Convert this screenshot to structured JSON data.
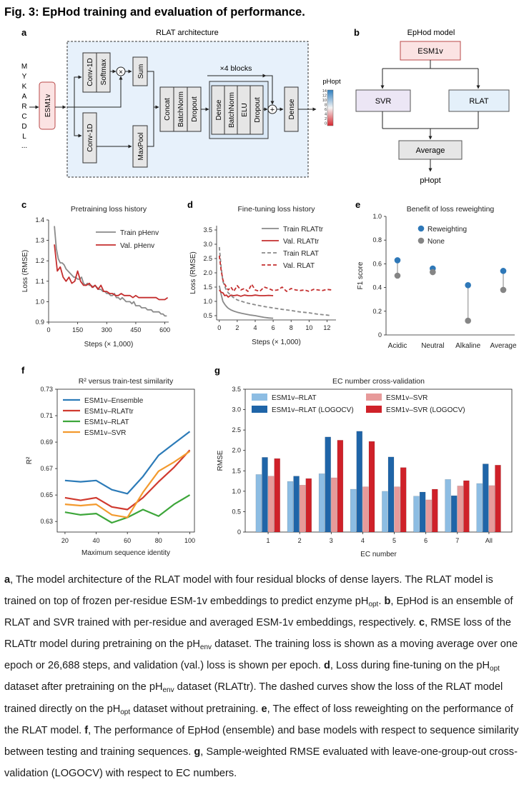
{
  "figure": {
    "title": "Fig. 3: EpHod training and evaluation of performance."
  },
  "panel_a": {
    "letter": "a",
    "title": "RLAT architecture",
    "sequence_letters": [
      "M",
      "Y",
      "K",
      "A",
      "R",
      "C",
      "D",
      "L",
      "..."
    ],
    "esm_label": "ESM1v",
    "blocks_label": "×4 blocks",
    "conv1": "Conv-1D",
    "softmax": "Softmax",
    "times": "×",
    "sum": "Sum",
    "conv2": "Conv-1D",
    "maxpool": "MaxPool",
    "concat": "Concat",
    "batchnorm": "BatchNorm",
    "dropout": "Dropout",
    "dense": "Dense",
    "elu": "ELU",
    "plus": "+",
    "output_label": "pHopt",
    "scale_ticks": [
      "14",
      "12",
      "10",
      "8",
      "6",
      "4",
      "2",
      "0"
    ]
  },
  "panel_b": {
    "letter": "b",
    "title": "EpHod model",
    "top": "ESM1v",
    "left": "SVR",
    "right": "RLAT",
    "avg": "Average",
    "out": "pHopt"
  },
  "chart_data": [
    {
      "id": "c",
      "type": "line",
      "title": "Pretraining loss history",
      "xlabel": "Steps (× 1,000)",
      "ylabel": "Loss (RMSE)",
      "xlim": [
        0,
        620
      ],
      "ylim": [
        0.9,
        1.4
      ],
      "xticks": [
        0,
        150,
        300,
        450,
        600
      ],
      "yticks": [
        0.9,
        1.0,
        1.1,
        1.2,
        1.3,
        1.4
      ],
      "xticklabels": [
        "0",
        "150",
        "300",
        "450",
        "600"
      ],
      "yticklabels": [
        "0.9",
        "1.0",
        "1.1",
        "1.2",
        "1.3",
        "1.4"
      ],
      "legend_position": "top-right",
      "series": [
        {
          "name": "Train pHenv",
          "color": "#8a8a8a",
          "dash": false,
          "x": [
            30,
            40,
            50,
            60,
            70,
            80,
            90,
            100,
            110,
            120,
            130,
            140,
            150,
            160,
            170,
            180,
            190,
            200,
            210,
            220,
            230,
            240,
            250,
            260,
            270,
            280,
            290,
            300,
            310,
            320,
            330,
            340,
            350,
            360,
            370,
            380,
            390,
            400,
            410,
            420,
            430,
            440,
            450,
            460,
            470,
            480,
            490,
            500,
            510,
            520,
            530,
            540,
            550,
            560,
            570,
            580,
            590,
            600,
            610
          ],
          "y": [
            1.37,
            1.26,
            1.21,
            1.19,
            1.19,
            1.18,
            1.16,
            1.15,
            1.14,
            1.13,
            1.12,
            1.12,
            1.11,
            1.11,
            1.12,
            1.09,
            1.08,
            1.09,
            1.08,
            1.08,
            1.07,
            1.08,
            1.07,
            1.06,
            1.06,
            1.05,
            1.05,
            1.04,
            1.04,
            1.03,
            1.03,
            1.04,
            1.02,
            1.02,
            1.01,
            1.02,
            1.01,
            1.0,
            1.0,
            1.0,
            0.99,
            1.0,
            0.98,
            0.98,
            0.98,
            0.97,
            0.97,
            0.97,
            0.96,
            0.96,
            0.96,
            0.95,
            0.95,
            0.95,
            0.95,
            0.94,
            0.94,
            0.93,
            0.93
          ]
        },
        {
          "name": "Val. pHenv",
          "color": "#c42e2e",
          "dash": false,
          "x": [
            30,
            45,
            60,
            75,
            90,
            105,
            120,
            135,
            150,
            165,
            180,
            195,
            210,
            225,
            240,
            255,
            270,
            285,
            300,
            315,
            330,
            345,
            360,
            375,
            390,
            405,
            420,
            435,
            450,
            465,
            480,
            495,
            510,
            525,
            540,
            555,
            570,
            585,
            600,
            615
          ],
          "y": [
            1.28,
            1.15,
            1.17,
            1.12,
            1.1,
            1.12,
            1.09,
            1.1,
            1.15,
            1.1,
            1.08,
            1.08,
            1.09,
            1.07,
            1.08,
            1.06,
            1.08,
            1.05,
            1.05,
            1.04,
            1.04,
            1.03,
            1.03,
            1.04,
            1.03,
            1.03,
            1.03,
            1.02,
            1.03,
            1.02,
            1.02,
            1.02,
            1.02,
            1.02,
            1.02,
            1.02,
            1.01,
            1.01,
            1.01,
            1.02
          ]
        }
      ]
    },
    {
      "id": "d",
      "type": "line",
      "title": "Fine-tuning loss history",
      "xlabel": "Steps (× 1,000)",
      "ylabel": "Loss (RMSE)",
      "xlim": [
        -0.3,
        13
      ],
      "ylim": [
        0.35,
        3.65
      ],
      "xticks": [
        0,
        2,
        4,
        6,
        8,
        10,
        12
      ],
      "yticks": [
        0.5,
        1.0,
        1.5,
        2.0,
        2.5,
        3.0,
        3.5
      ],
      "xticklabels": [
        "0",
        "2",
        "4",
        "6",
        "8",
        "10",
        "12"
      ],
      "yticklabels": [
        "0.5",
        "1.0",
        "1.5",
        "2.0",
        "2.5",
        "3.0",
        "3.5"
      ],
      "legend_position": "top-right",
      "series": [
        {
          "name": "Train RLATtr",
          "color": "#8a8a8a",
          "dash": false,
          "x": [
            0,
            0.2,
            0.4,
            0.6,
            0.8,
            1.0,
            1.3,
            1.6,
            2.0,
            2.5,
            3.0,
            3.5,
            4.0,
            4.5,
            5.0,
            5.5,
            6.0
          ],
          "y": [
            1.55,
            1.25,
            1.0,
            0.9,
            0.82,
            0.76,
            0.7,
            0.66,
            0.62,
            0.58,
            0.55,
            0.52,
            0.5,
            0.47,
            0.44,
            0.42,
            0.41
          ]
        },
        {
          "name": "Val. RLATtr",
          "color": "#c42e2e",
          "dash": false,
          "x": [
            0,
            0.2,
            0.4,
            0.6,
            0.8,
            1.0,
            1.3,
            1.6,
            2.0,
            2.4,
            2.8,
            3.2,
            3.6,
            4.0,
            4.5,
            5.0,
            5.5,
            6.0
          ],
          "y": [
            1.4,
            1.32,
            1.3,
            1.2,
            1.22,
            1.15,
            1.22,
            1.2,
            1.22,
            1.18,
            1.22,
            1.2,
            1.2,
            1.22,
            1.2,
            1.2,
            1.21,
            1.2
          ]
        },
        {
          "name": "Train RLAT",
          "color": "#8a8a8a",
          "dash": true,
          "x": [
            0,
            0.2,
            0.4,
            0.7,
            1.0,
            1.5,
            2.0,
            3.0,
            4.0,
            5.0,
            6.0,
            7.0,
            8.0,
            9.0,
            10.0,
            11.0,
            12.0,
            12.5
          ],
          "y": [
            2.9,
            2.2,
            1.7,
            1.45,
            1.3,
            1.15,
            1.05,
            0.95,
            0.88,
            0.82,
            0.77,
            0.72,
            0.68,
            0.63,
            0.6,
            0.55,
            0.52,
            0.5
          ]
        },
        {
          "name": "Val. RLAT",
          "color": "#c42e2e",
          "dash": true,
          "x": [
            0,
            0.2,
            0.4,
            0.6,
            0.8,
            1.0,
            1.3,
            1.6,
            2.0,
            2.4,
            2.8,
            3.2,
            3.6,
            4.0,
            4.5,
            5.0,
            5.5,
            6.0,
            6.5,
            7.0,
            7.5,
            8.0,
            8.5,
            9.0,
            9.5,
            10.0,
            10.5,
            11.0,
            11.5,
            12.0,
            12.5
          ],
          "y": [
            2.6,
            2.1,
            1.75,
            1.6,
            1.5,
            1.4,
            1.5,
            1.35,
            1.55,
            1.4,
            1.45,
            1.35,
            1.6,
            1.4,
            1.35,
            1.5,
            1.45,
            1.38,
            1.4,
            1.5,
            1.35,
            1.45,
            1.4,
            1.38,
            1.4,
            1.35,
            1.42,
            1.4,
            1.38,
            1.42,
            1.4
          ]
        }
      ]
    },
    {
      "id": "e",
      "type": "scatter",
      "title": "Benefit of loss reweighting",
      "xlabel": "",
      "ylabel": "F1 score",
      "ylim": [
        0,
        1.0
      ],
      "yticks": [
        0,
        0.2,
        0.4,
        0.6,
        0.8,
        1.0
      ],
      "yticklabels": [
        "0",
        "0.2",
        "0.4",
        "0.6",
        "0.8",
        "1.0"
      ],
      "categories": [
        "Acidic",
        "Neutral",
        "Alkaline",
        "Average"
      ],
      "legend_position": "top-right",
      "series": [
        {
          "name": "Reweighting",
          "color": "#2e78b8",
          "values": [
            0.63,
            0.56,
            0.42,
            0.54
          ]
        },
        {
          "name": "None",
          "color": "#858585",
          "values": [
            0.5,
            0.53,
            0.12,
            0.38
          ]
        }
      ]
    },
    {
      "id": "f",
      "type": "line",
      "title": "R² versus train-test similarity",
      "xlabel": "Maximum sequence identity",
      "ylabel": "R²",
      "xlim": [
        15,
        103
      ],
      "ylim": [
        0.622,
        0.73
      ],
      "xticks": [
        20,
        40,
        60,
        80,
        100
      ],
      "yticks": [
        0.63,
        0.65,
        0.67,
        0.69,
        0.71,
        0.73
      ],
      "xticklabels": [
        "20",
        "40",
        "60",
        "80",
        "100"
      ],
      "yticklabels": [
        "0.63",
        "0.65",
        "0.67",
        "0.69",
        "0.71",
        "0.73"
      ],
      "legend_position": "top-left",
      "series": [
        {
          "name": "ESM1v–Ensemble",
          "color": "#2c7bb8",
          "x": [
            20,
            30,
            40,
            50,
            60,
            70,
            80,
            90,
            100
          ],
          "y": [
            0.661,
            0.66,
            0.661,
            0.654,
            0.651,
            0.664,
            0.68,
            0.689,
            0.698
          ]
        },
        {
          "name": "ESM1v–RLATtr",
          "color": "#d03a2f",
          "x": [
            20,
            30,
            40,
            50,
            60,
            70,
            80,
            90,
            100
          ],
          "y": [
            0.648,
            0.646,
            0.648,
            0.641,
            0.639,
            0.648,
            0.66,
            0.671,
            0.684
          ]
        },
        {
          "name": "ESM1v–RLAT",
          "color": "#3da63a",
          "x": [
            20,
            30,
            40,
            50,
            60,
            70,
            80,
            90,
            100
          ],
          "y": [
            0.637,
            0.635,
            0.636,
            0.629,
            0.633,
            0.639,
            0.634,
            0.643,
            0.65
          ]
        },
        {
          "name": "ESM1v–SVR",
          "color": "#f39a2e",
          "x": [
            20,
            30,
            40,
            50,
            60,
            70,
            80,
            90,
            100
          ],
          "y": [
            0.643,
            0.642,
            0.643,
            0.635,
            0.633,
            0.652,
            0.668,
            0.675,
            0.683
          ]
        }
      ]
    },
    {
      "id": "g",
      "type": "bar",
      "title": "EC number cross-validation",
      "xlabel": "EC number",
      "ylabel": "RMSE",
      "ylim": [
        0,
        3.5
      ],
      "yticks": [
        0,
        0.5,
        1.0,
        1.5,
        2.0,
        2.5,
        3.0,
        3.5
      ],
      "yticklabels": [
        "0",
        "0.5",
        "1.0",
        "1.5",
        "2.0",
        "2.5",
        "3.0",
        "3.5"
      ],
      "categories": [
        "1",
        "2",
        "3",
        "4",
        "5",
        "6",
        "7",
        "All"
      ],
      "legend_position": "top",
      "series": [
        {
          "name": "ESM1v–RLAT",
          "color": "#8dbde3",
          "values": [
            1.41,
            1.24,
            1.43,
            1.05,
            1.0,
            0.88,
            1.29,
            1.19
          ]
        },
        {
          "name": "ESM1v–RLAT (LOGOCV)",
          "color": "#1f65a8",
          "values": [
            1.83,
            1.37,
            2.33,
            2.47,
            1.84,
            0.98,
            0.89,
            1.67
          ]
        },
        {
          "name": "ESM1v–SVR",
          "color": "#e79a9a",
          "values": [
            1.37,
            1.15,
            1.33,
            1.11,
            1.11,
            0.79,
            1.13,
            1.14
          ]
        },
        {
          "name": "ESM1v–SVR (LOGOCV)",
          "color": "#cf2129",
          "values": [
            1.8,
            1.31,
            2.25,
            2.22,
            1.58,
            1.05,
            1.26,
            1.64
          ]
        }
      ]
    }
  ],
  "panel_letters": {
    "c": "c",
    "d": "d",
    "e": "e",
    "f": "f",
    "g": "g"
  },
  "caption": {
    "a_letter": "a",
    "a_text": ", The model architecture of the RLAT model with four residual blocks of dense layers. The RLAT model is trained on top of frozen per-residue ESM-1v embeddings to predict enzyme pH",
    "a_sub": "opt",
    "a_end": ". ",
    "b_letter": "b",
    "b_text": ", EpHod is an ensemble of RLAT and SVR trained with per-residue and averaged ESM-1v embeddings, respectively. ",
    "c_letter": "c",
    "c_text": ", RMSE loss of the RLATtr model during pretraining on the pH",
    "c_sub": "env",
    "c_text2": " dataset. The training loss is shown as a moving average over one epoch or 26,688 steps, and validation (val.) loss is shown per epoch. ",
    "d_letter": "d",
    "d_text": ", Loss during fine-tuning on the pH",
    "d_sub": "opt",
    "d_text2": " dataset after pretraining on the pH",
    "d_sub2": "env",
    "d_text3": " dataset (RLATtr). The dashed curves show the loss of the RLAT model trained directly on the pH",
    "d_sub3": "opt",
    "d_text4": " dataset without pretraining. ",
    "e_letter": "e",
    "e_text": ", The effect of loss reweighting on the performance of the RLAT model. ",
    "f_letter": "f",
    "f_text": ", The performance of EpHod (ensemble) and base models with respect to sequence similarity between testing and training sequences. ",
    "g_letter": "g",
    "g_text": ", Sample-weighted RMSE evaluated with leave-one-group-out cross-validation (LOGOCV) with respect to EC numbers."
  }
}
